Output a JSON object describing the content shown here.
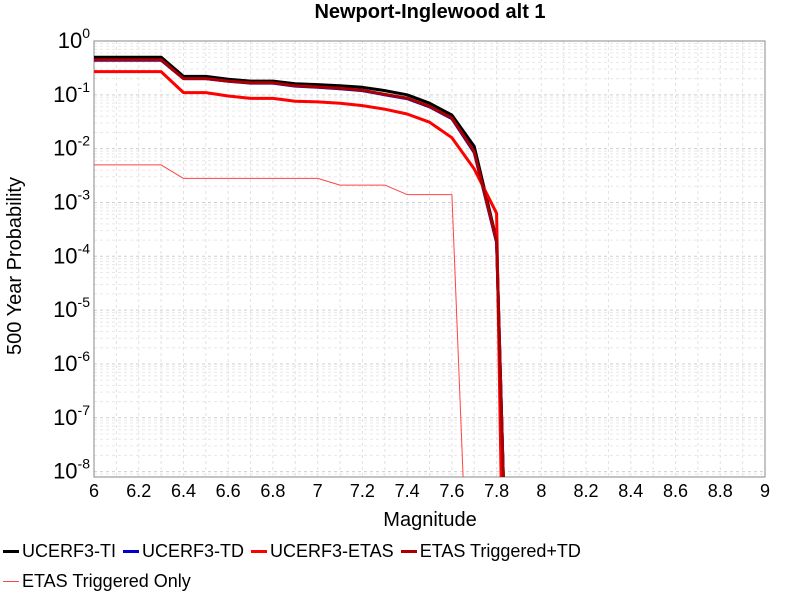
{
  "chart_data": {
    "type": "line",
    "title": "Newport-Inglewood alt 1",
    "xlabel": "Magnitude",
    "ylabel": "500 Year Probability",
    "xlim": [
      6,
      9
    ],
    "ylim_log10": [
      -8.1,
      0
    ],
    "yscale": "log",
    "grid": true,
    "legend_placement": "bottom",
    "x_ticks": [
      "6",
      "6.2",
      "6.4",
      "6.6",
      "6.8",
      "7",
      "7.2",
      "7.4",
      "7.6",
      "7.8",
      "8",
      "8.2",
      "8.4",
      "8.6",
      "8.8",
      "9"
    ],
    "y_ticks": [
      {
        "base": "10",
        "exp": "0",
        "log": 0
      },
      {
        "base": "10",
        "exp": "-1",
        "log": -1
      },
      {
        "base": "10",
        "exp": "-2",
        "log": -2
      },
      {
        "base": "10",
        "exp": "-3",
        "log": -3
      },
      {
        "base": "10",
        "exp": "-4",
        "log": -4
      },
      {
        "base": "10",
        "exp": "-5",
        "log": -5
      },
      {
        "base": "10",
        "exp": "-6",
        "log": -6
      },
      {
        "base": "10",
        "exp": "-7",
        "log": -7
      },
      {
        "base": "10",
        "exp": "-8",
        "log": -8
      }
    ],
    "series": [
      {
        "name": "UCERF3-TI",
        "color": "#000000",
        "width": 3,
        "x": [
          6.0,
          6.3,
          6.4,
          6.5,
          6.6,
          6.7,
          6.8,
          6.9,
          7.0,
          7.1,
          7.2,
          7.3,
          7.4,
          7.5,
          7.6,
          7.7,
          7.8,
          7.83
        ],
        "y": [
          0.5,
          0.5,
          0.22,
          0.22,
          0.195,
          0.18,
          0.18,
          0.16,
          0.155,
          0.148,
          0.138,
          0.12,
          0.1,
          0.07,
          0.042,
          0.011,
          0.0002,
          1e-09
        ]
      },
      {
        "name": "UCERF3-TD",
        "color": "#0000cc",
        "width": 3,
        "x": [
          6.0,
          6.3,
          6.4,
          6.5,
          6.6,
          6.7,
          6.8,
          6.9,
          7.0,
          7.1,
          7.2,
          7.3,
          7.4,
          7.5,
          7.6,
          7.7,
          7.8,
          7.83
        ],
        "y": [
          0.44,
          0.44,
          0.2,
          0.2,
          0.178,
          0.165,
          0.165,
          0.145,
          0.138,
          0.13,
          0.12,
          0.1,
          0.085,
          0.06,
          0.036,
          0.0085,
          0.00018,
          1e-09
        ]
      },
      {
        "name": "UCERF3-ETAS",
        "color": "#ff0000",
        "width": 3,
        "x": [
          6.0,
          6.3,
          6.4,
          6.5,
          6.6,
          6.7,
          6.8,
          6.9,
          7.0,
          7.1,
          7.2,
          7.3,
          7.4,
          7.5,
          7.6,
          7.7,
          7.8,
          7.82
        ],
        "y": [
          0.27,
          0.27,
          0.11,
          0.11,
          0.095,
          0.086,
          0.086,
          0.076,
          0.074,
          0.07,
          0.063,
          0.054,
          0.044,
          0.031,
          0.016,
          0.0042,
          0.00063,
          1e-09
        ]
      },
      {
        "name": "ETAS Triggered+TD",
        "color": "#aa0000",
        "width": 3,
        "x": [
          6.0,
          6.3,
          6.4,
          6.5,
          6.6,
          6.7,
          6.8,
          6.9,
          7.0,
          7.1,
          7.2,
          7.3,
          7.4,
          7.5,
          7.6,
          7.7,
          7.8,
          7.83
        ],
        "y": [
          0.45,
          0.45,
          0.2,
          0.2,
          0.18,
          0.167,
          0.167,
          0.147,
          0.14,
          0.132,
          0.122,
          0.102,
          0.087,
          0.061,
          0.037,
          0.0088,
          0.00019,
          1e-09
        ]
      },
      {
        "name": "ETAS Triggered Only",
        "color": "#ff4444",
        "width": 1,
        "x": [
          6.0,
          6.3,
          6.4,
          6.5,
          6.6,
          6.7,
          6.8,
          6.9,
          7.0,
          7.1,
          7.2,
          7.3,
          7.4,
          7.5,
          7.6,
          7.65
        ],
        "y": [
          0.005,
          0.005,
          0.0028,
          0.0028,
          0.0028,
          0.0028,
          0.0028,
          0.0028,
          0.0028,
          0.0021,
          0.0021,
          0.0021,
          0.0014,
          0.0014,
          0.0014,
          1e-09
        ]
      }
    ]
  }
}
